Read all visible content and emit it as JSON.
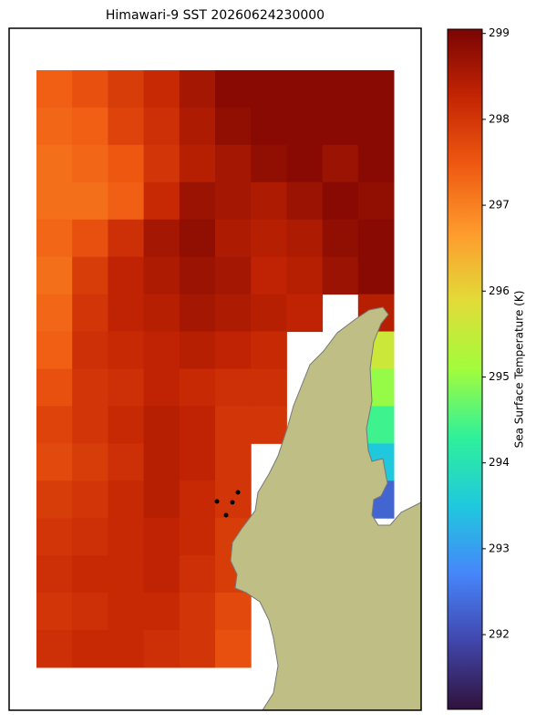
{
  "chart_data": {
    "type": "heatmap",
    "title": "Himawari-9 SST 20260624230000",
    "colorbar_label": "Sea Surface Temperature (K)",
    "clim": [
      291.13,
      299.05
    ],
    "colorbar_ticks": [
      292,
      293,
      294,
      295,
      296,
      297,
      298,
      299
    ],
    "colormap_colors": [
      "#30123b",
      "#4146ac",
      "#4686fb",
      "#1fc9dd",
      "#2ff19a",
      "#a2fc3c",
      "#e2dc38",
      "#fe9b2d",
      "#ef5911",
      "#c42503",
      "#7a0403"
    ],
    "land_color": "#bfbf85",
    "z": [
      [
        297.4,
        297.6,
        297.9,
        298.2,
        298.6,
        298.9,
        298.9,
        298.9,
        298.9,
        298.9
      ],
      [
        297.3,
        297.4,
        297.8,
        298.1,
        298.5,
        298.8,
        298.9,
        298.9,
        298.9,
        298.9
      ],
      [
        297.2,
        297.3,
        297.5,
        298.0,
        298.4,
        298.6,
        298.8,
        298.9,
        298.7,
        298.9
      ],
      [
        297.2,
        297.2,
        297.4,
        298.2,
        298.7,
        298.6,
        298.5,
        298.7,
        298.9,
        298.8
      ],
      [
        297.3,
        297.6,
        298.1,
        298.6,
        298.8,
        298.5,
        298.4,
        298.5,
        298.8,
        298.9
      ],
      [
        297.2,
        297.9,
        298.3,
        298.5,
        298.7,
        298.6,
        298.3,
        298.4,
        298.7,
        298.9
      ],
      [
        297.3,
        298.0,
        298.3,
        298.4,
        298.6,
        298.5,
        298.4,
        298.3,
        null,
        298.4
      ],
      [
        297.4,
        298.1,
        298.2,
        298.3,
        298.4,
        298.3,
        298.2,
        null,
        null,
        295.6
      ],
      [
        297.6,
        298.0,
        298.1,
        298.3,
        298.2,
        298.1,
        298.1,
        null,
        null,
        295.0
      ],
      [
        297.8,
        298.0,
        298.2,
        298.4,
        298.3,
        298.0,
        298.0,
        null,
        null,
        294.4
      ],
      [
        297.7,
        297.9,
        298.1,
        298.4,
        298.3,
        298.0,
        null,
        null,
        null,
        293.5
      ],
      [
        297.9,
        298.0,
        298.2,
        298.4,
        298.2,
        298.0,
        null,
        null,
        null,
        292.3
      ],
      [
        298.0,
        298.1,
        298.2,
        298.3,
        298.2,
        297.9,
        null,
        null,
        null,
        null
      ],
      [
        298.1,
        298.2,
        298.2,
        298.3,
        298.1,
        297.9,
        null,
        null,
        null,
        null
      ],
      [
        298.0,
        298.1,
        298.2,
        298.2,
        298.0,
        297.7,
        null,
        null,
        null,
        null
      ],
      [
        298.1,
        298.2,
        298.2,
        298.1,
        298.0,
        297.6,
        null,
        null,
        null,
        null
      ]
    ]
  }
}
